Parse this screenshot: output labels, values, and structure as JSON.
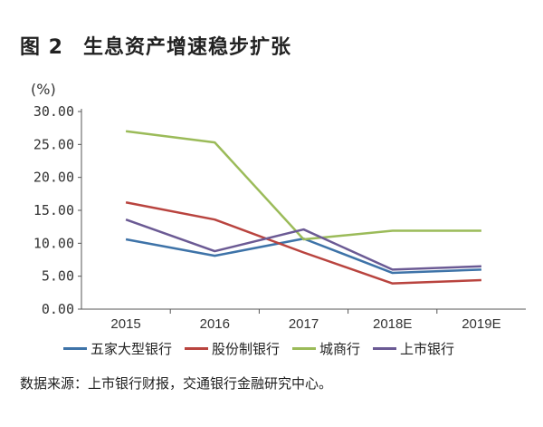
{
  "title_num": "图 2",
  "title": "生息资产增速稳步扩张",
  "source": "数据来源：上市银行财报，交通银行金融研究中心。",
  "chart_data": {
    "type": "line",
    "title": "生息资产增速稳步扩张",
    "ylabel": "(%)",
    "xlabel": "",
    "categories": [
      "2015",
      "2016",
      "2017",
      "2018E",
      "2019E"
    ],
    "ylim": [
      0,
      30
    ],
    "yticks": [
      "0.00",
      "5.00",
      "10.00",
      "15.00",
      "20.00",
      "25.00",
      "30.00"
    ],
    "grid": false,
    "legend": "bottom",
    "series": [
      {
        "name": "五家大型银行",
        "color": "#3e73a8",
        "values": [
          10.6,
          8.1,
          10.7,
          5.5,
          6.0
        ]
      },
      {
        "name": "股份制银行",
        "color": "#b9443f",
        "values": [
          16.2,
          13.6,
          8.6,
          3.9,
          4.4
        ]
      },
      {
        "name": "城商行",
        "color": "#9bbb59",
        "values": [
          27.0,
          25.3,
          10.6,
          11.9,
          11.9
        ]
      },
      {
        "name": "上市银行",
        "color": "#6b5a94",
        "values": [
          13.6,
          8.8,
          12.1,
          6.0,
          6.5
        ]
      }
    ]
  }
}
